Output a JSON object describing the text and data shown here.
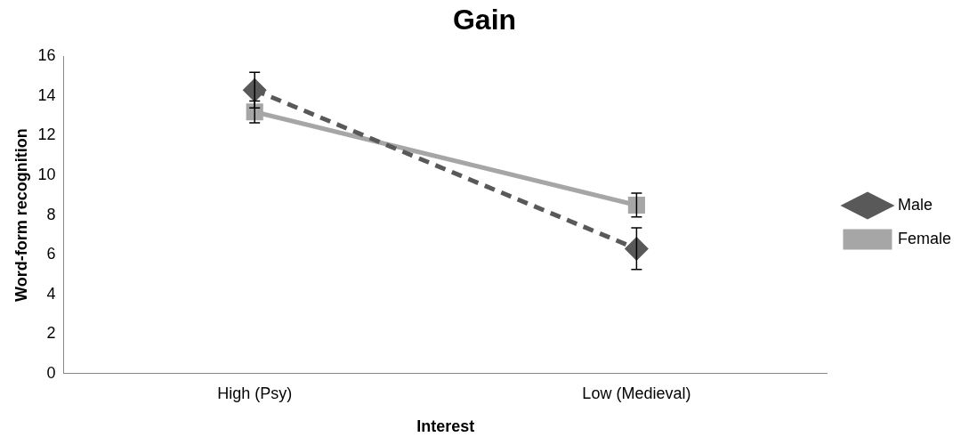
{
  "chart_data": {
    "type": "line",
    "title": "Gain",
    "xlabel": "Interest",
    "ylabel": "Word-form recognition",
    "categories": [
      "High (Psy)",
      "Low (Medieval)"
    ],
    "series": [
      {
        "name": "Male",
        "color": "#595959",
        "values": [
          14.3,
          6.3
        ],
        "errors": [
          0.9,
          1.05
        ],
        "marker": "diamond",
        "line_style": "dashed"
      },
      {
        "name": "Female",
        "color": "#a6a6a6",
        "values": [
          13.2,
          8.5
        ],
        "errors": [
          0.55,
          0.6
        ],
        "marker": "square",
        "line_style": "solid"
      }
    ],
    "ylim": [
      0,
      16
    ],
    "yticks": [
      0,
      2,
      4,
      6,
      8,
      10,
      12,
      14,
      16
    ],
    "grid": false,
    "legend": "right"
  }
}
